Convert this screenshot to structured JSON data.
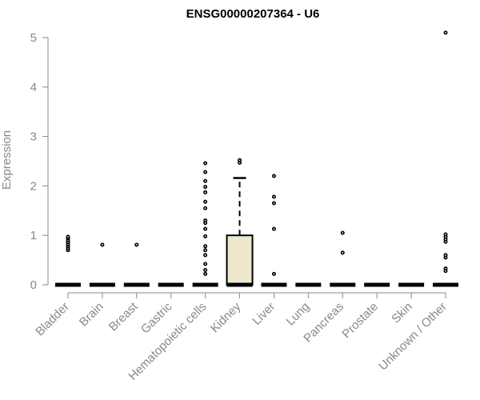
{
  "chart_data": {
    "type": "boxplot",
    "title": "ENSG00000207364 - U6",
    "xlabel": "",
    "ylabel": "Expression",
    "ylim": [
      0,
      5
    ],
    "yticks": [
      0,
      1,
      2,
      3,
      4,
      5
    ],
    "grid": false,
    "categories": [
      "Bladder",
      "Brain",
      "Breast",
      "Gastric",
      "Hematopoietic cells",
      "Kidney",
      "Liver",
      "Lung",
      "Pancreas",
      "Prostate",
      "Skin",
      "Unknown / Other"
    ],
    "boxes": [
      {
        "category": "Bladder",
        "min": 0,
        "q1": 0,
        "median": 0,
        "q3": 0,
        "max": 0,
        "outliers": [
          0.7,
          0.74,
          0.78,
          0.82,
          0.86,
          0.9,
          0.94,
          0.97
        ]
      },
      {
        "category": "Brain",
        "min": 0,
        "q1": 0,
        "median": 0,
        "q3": 0,
        "max": 0,
        "outliers": [
          0.81
        ]
      },
      {
        "category": "Breast",
        "min": 0,
        "q1": 0,
        "median": 0,
        "q3": 0,
        "max": 0,
        "outliers": [
          0.81
        ]
      },
      {
        "category": "Gastric",
        "min": 0,
        "q1": 0,
        "median": 0,
        "q3": 0,
        "max": 0,
        "outliers": []
      },
      {
        "category": "Hematopoietic cells",
        "min": 0,
        "q1": 0,
        "median": 0,
        "q3": 0,
        "max": 0,
        "outliers": [
          0.22,
          0.3,
          0.42,
          0.6,
          0.7,
          0.78,
          0.98,
          1.13,
          1.25,
          1.3,
          1.55,
          1.68,
          1.87,
          1.98,
          2.1,
          2.28,
          2.46
        ]
      },
      {
        "category": "Kidney",
        "min": 0,
        "q1": 0,
        "median": 0,
        "q3": 1.0,
        "max": 2.16,
        "outliers": [
          2.47,
          2.52
        ]
      },
      {
        "category": "Liver",
        "min": 0,
        "q1": 0,
        "median": 0,
        "q3": 0,
        "max": 0,
        "outliers": [
          0.22,
          1.13,
          1.65,
          1.78,
          2.2
        ]
      },
      {
        "category": "Lung",
        "min": 0,
        "q1": 0,
        "median": 0,
        "q3": 0,
        "max": 0,
        "outliers": []
      },
      {
        "category": "Pancreas",
        "min": 0,
        "q1": 0,
        "median": 0,
        "q3": 0,
        "max": 0,
        "outliers": [
          0.65,
          1.05
        ]
      },
      {
        "category": "Prostate",
        "min": 0,
        "q1": 0,
        "median": 0,
        "q3": 0,
        "max": 0,
        "outliers": []
      },
      {
        "category": "Skin",
        "min": 0,
        "q1": 0,
        "median": 0,
        "q3": 0,
        "max": 0,
        "outliers": []
      },
      {
        "category": "Unknown / Other",
        "min": 0,
        "q1": 0,
        "median": 0,
        "q3": 0,
        "max": 0,
        "outliers": [
          0.28,
          0.33,
          0.55,
          0.6,
          0.87,
          0.92,
          0.97,
          1.02,
          5.1
        ]
      }
    ],
    "colors": {
      "box_fill": "#EDE8CE",
      "box_stroke": "#000000",
      "point_stroke": "#000000",
      "axis": "#888888",
      "axis_text": "#888888",
      "title": "#000000"
    }
  }
}
